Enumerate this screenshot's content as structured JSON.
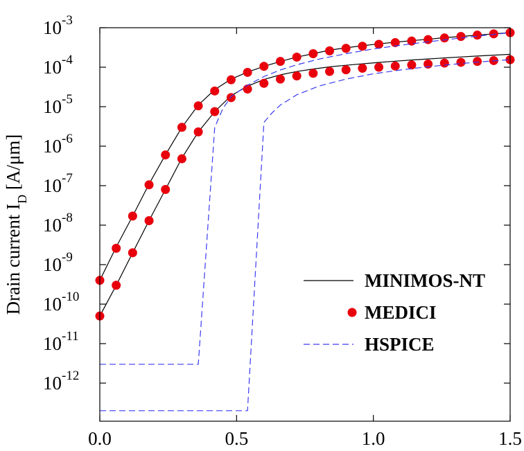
{
  "chart_data": {
    "type": "line",
    "title": "",
    "xlabel": "",
    "ylabel": {
      "prefix": "Drain current I",
      "subscript": "D",
      "suffix": " [A/μm]"
    },
    "xlim": [
      0.0,
      1.5
    ],
    "ylim_exp": [
      -13,
      -3
    ],
    "log_y": true,
    "grid": false,
    "legend_position": "bottom-right",
    "x_ticks": [
      "0.0",
      "0.5",
      "1.0",
      "1.5"
    ],
    "y_ticks": [
      {
        "base": "10",
        "exp": "-3"
      },
      {
        "base": "10",
        "exp": "-4"
      },
      {
        "base": "10",
        "exp": "-5"
      },
      {
        "base": "10",
        "exp": "-6"
      },
      {
        "base": "10",
        "exp": "-7"
      },
      {
        "base": "10",
        "exp": "-8"
      },
      {
        "base": "10",
        "exp": "-9"
      },
      {
        "base": "10",
        "exp": "-10"
      },
      {
        "base": "10",
        "exp": "-11"
      },
      {
        "base": "10",
        "exp": "-12"
      }
    ],
    "series": [
      {
        "name": "MINIMOS-NT",
        "style": "solid",
        "color": "#000000",
        "curves": [
          {
            "x": [
              0.0,
              0.06,
              0.12,
              0.18,
              0.24,
              0.3,
              0.36,
              0.42,
              0.48,
              0.54,
              0.6,
              0.66,
              0.72,
              0.78,
              0.84,
              0.9,
              0.96,
              1.02,
              1.08,
              1.14,
              1.2,
              1.26,
              1.32,
              1.38,
              1.44,
              1.5
            ],
            "y": [
              4e-10,
              2.8e-09,
              1.7e-08,
              1.1e-07,
              6e-07,
              3e-06,
              1.1e-05,
              2.7e-05,
              5e-05,
              7.5e-05,
              0.000105,
              0.00014,
              0.00018,
              0.00022,
              0.00027,
              0.00031,
              0.00035,
              0.00039,
              0.00043,
              0.00047,
              0.00051,
              0.00056,
              0.0006,
              0.00065,
              0.0007,
              0.00075
            ]
          },
          {
            "x": [
              0.0,
              0.06,
              0.12,
              0.18,
              0.24,
              0.3,
              0.36,
              0.42,
              0.48,
              0.54,
              0.6,
              0.66,
              0.72,
              0.78,
              0.84,
              0.9,
              0.96,
              1.02,
              1.08,
              1.14,
              1.2,
              1.26,
              1.32,
              1.38,
              1.44,
              1.5
            ],
            "y": [
              5e-11,
              3e-10,
              2e-09,
              1.3e-08,
              8e-08,
              5e-07,
              2.3e-06,
              7.5e-06,
              1.9e-05,
              3.3e-05,
              4.9e-05,
              6.4e-05,
              7.8e-05,
              9e-05,
              0.000102,
              0.000112,
              0.000122,
              0.000132,
              0.000142,
              0.000152,
              0.000162,
              0.000172,
              0.000182,
              0.000192,
              0.000202,
              0.000212
            ]
          }
        ]
      },
      {
        "name": "MEDICI",
        "style": "markers",
        "color": "#e8000d",
        "curves": [
          {
            "x": [
              0.0,
              0.06,
              0.12,
              0.18,
              0.24,
              0.3,
              0.36,
              0.42,
              0.48,
              0.54,
              0.6,
              0.66,
              0.72,
              0.78,
              0.84,
              0.9,
              0.96,
              1.02,
              1.08,
              1.14,
              1.2,
              1.26,
              1.32,
              1.38,
              1.44,
              1.5
            ],
            "y": [
              4e-10,
              2.6e-09,
              1.7e-08,
              1.05e-07,
              6e-07,
              3e-06,
              1.05e-05,
              2.5e-05,
              4.8e-05,
              7.4e-05,
              0.000105,
              0.00014,
              0.00018,
              0.00022,
              0.00026,
              0.0003,
              0.00034,
              0.00038,
              0.00042,
              0.00046,
              0.0005,
              0.00055,
              0.0006,
              0.00065,
              0.0007,
              0.00075
            ]
          },
          {
            "x": [
              0.0,
              0.06,
              0.12,
              0.18,
              0.24,
              0.3,
              0.36,
              0.42,
              0.48,
              0.54,
              0.6,
              0.66,
              0.72,
              0.78,
              0.84,
              0.9,
              0.96,
              1.02,
              1.08,
              1.14,
              1.2,
              1.26,
              1.32,
              1.38,
              1.44,
              1.5
            ],
            "y": [
              5e-11,
              3e-10,
              2e-09,
              1.3e-08,
              8e-08,
              4.8e-07,
              2.3e-06,
              7.5e-06,
              1.7e-05,
              2.8e-05,
              3.9e-05,
              5e-05,
              6e-05,
              7e-05,
              7.8e-05,
              8.6e-05,
              9.4e-05,
              0.0001,
              0.000107,
              0.000114,
              0.00012,
              0.000127,
              0.000133,
              0.00014,
              0.000147,
              0.000155
            ]
          }
        ]
      },
      {
        "name": "HSPICE",
        "style": "dashed",
        "color": "#3a3af0",
        "curves": [
          {
            "x": [
              0.0,
              0.36,
              0.42,
              0.45,
              0.48,
              0.54,
              0.6,
              0.66,
              0.72,
              0.8,
              0.9,
              1.0,
              1.1,
              1.2,
              1.3,
              1.4,
              1.5
            ],
            "y": [
              3e-12,
              3e-12,
              3e-06,
              9e-06,
              1.8e-05,
              3.5e-05,
              5.8e-05,
              8.5e-05,
              0.000115,
              0.00016,
              0.00022,
              0.00029,
              0.00036,
              0.00044,
              0.00053,
              0.00063,
              0.00075
            ]
          },
          {
            "x": [
              0.0,
              0.54,
              0.6,
              0.63,
              0.66,
              0.72,
              0.8,
              0.9,
              1.0,
              1.1,
              1.2,
              1.3,
              1.4,
              1.5
            ],
            "y": [
              2e-13,
              2e-13,
              4e-06,
              7e-06,
              1.1e-05,
              2e-05,
              3.3e-05,
              5e-05,
              6.8e-05,
              8.5e-05,
              0.000103,
              0.00012,
              0.000138,
              0.000155
            ]
          }
        ]
      }
    ]
  }
}
